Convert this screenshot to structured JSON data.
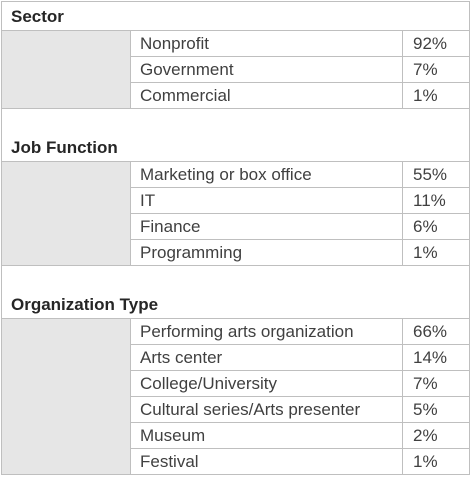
{
  "sections": [
    {
      "title": "Sector",
      "rows": [
        {
          "label": "Nonprofit",
          "value": "92%"
        },
        {
          "label": "Government",
          "value": "7%"
        },
        {
          "label": "Commercial",
          "value": "1%"
        }
      ]
    },
    {
      "title": "Job Function",
      "rows": [
        {
          "label": "Marketing or box office",
          "value": "55%"
        },
        {
          "label": "IT",
          "value": "11%"
        },
        {
          "label": "Finance",
          "value": "6%"
        },
        {
          "label": "Programming",
          "value": "1%"
        }
      ]
    },
    {
      "title": "Organization Type",
      "rows": [
        {
          "label": "Performing arts organization",
          "value": "66%"
        },
        {
          "label": "Arts center",
          "value": "14%"
        },
        {
          "label": "College/University",
          "value": "7%"
        },
        {
          "label": "Cultural series/Arts presenter",
          "value": "5%"
        },
        {
          "label": "Museum",
          "value": "2%"
        },
        {
          "label": "Festival",
          "value": "1%"
        }
      ]
    }
  ]
}
